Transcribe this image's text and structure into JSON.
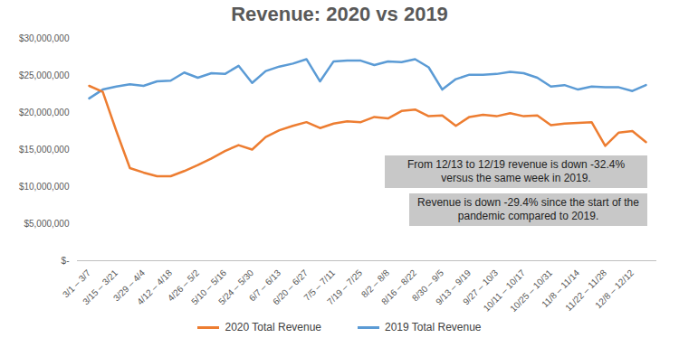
{
  "chart_data": {
    "type": "line",
    "title": "Revenue: 2020 vs 2019",
    "categories": [
      "3/1 – 3/7",
      null,
      "3/15 – 3/21",
      null,
      "3/29 – 4/4",
      null,
      "4/12 – 4/18",
      null,
      "4/26 – 5/2",
      null,
      "5/10 – 5/16",
      null,
      "5/24 – 5/30",
      null,
      "6/7 – 6/13",
      null,
      "6/20 – 6/27",
      null,
      "7/5 – 7/11",
      null,
      "7/19 – 7/25",
      null,
      "8/2 – 8/8",
      null,
      "8/16 – 8/22",
      null,
      "8/30 – 9/5",
      null,
      "9/13 – 9/19",
      null,
      "9/27 – 10/3",
      null,
      "10/11 – 10/17",
      null,
      "10/25 – 10/31",
      null,
      "11/8 – 11/14",
      null,
      "11/22 – 11/28",
      null,
      "12/8 – 12/12",
      null
    ],
    "series": [
      {
        "name": "2020 Total Revenue",
        "color": "#ed7d31",
        "values": [
          23600000,
          22800000,
          17500000,
          12500000,
          11900000,
          11400000,
          11400000,
          12100000,
          12900000,
          13800000,
          14800000,
          15600000,
          15000000,
          16700000,
          17600000,
          18200000,
          18700000,
          17900000,
          18500000,
          18800000,
          18700000,
          19400000,
          19200000,
          20200000,
          20400000,
          19500000,
          19600000,
          18200000,
          19400000,
          19700000,
          19500000,
          19900000,
          19500000,
          19600000,
          18300000,
          18500000,
          18600000,
          18700000,
          15500000,
          17300000,
          17500000,
          16000000
        ]
      },
      {
        "name": "2019 Total Revenue",
        "color": "#5b9bd5",
        "values": [
          21900000,
          23100000,
          23500000,
          23800000,
          23600000,
          24200000,
          24300000,
          25400000,
          24700000,
          25300000,
          25200000,
          26300000,
          24000000,
          25600000,
          26200000,
          26600000,
          27200000,
          24200000,
          26900000,
          27000000,
          27000000,
          26400000,
          26900000,
          26800000,
          27200000,
          26100000,
          23100000,
          24500000,
          25100000,
          25100000,
          25200000,
          25500000,
          25300000,
          24700000,
          23500000,
          23700000,
          23100000,
          23500000,
          23400000,
          23400000,
          22900000,
          23700000
        ]
      }
    ],
    "ylim": [
      0,
      30000000
    ],
    "yticks": [
      {
        "value": 0,
        "label": "$-"
      },
      {
        "value": 5000000,
        "label": "$5,000,000"
      },
      {
        "value": 10000000,
        "label": "$10,000,000"
      },
      {
        "value": 15000000,
        "label": "$15,000,000"
      },
      {
        "value": 20000000,
        "label": "$20,000,000"
      },
      {
        "value": 25000000,
        "label": "$25,000,000"
      },
      {
        "value": 30000000,
        "label": "$30,000,000"
      }
    ],
    "grid": false,
    "legend": "bottom",
    "annotations": [
      "From 12/13 to 12/19 revenue is down -32.4% versus the same week in 2019.",
      "Revenue is down -29.4% since the start of the pandemic compared to 2019."
    ]
  }
}
